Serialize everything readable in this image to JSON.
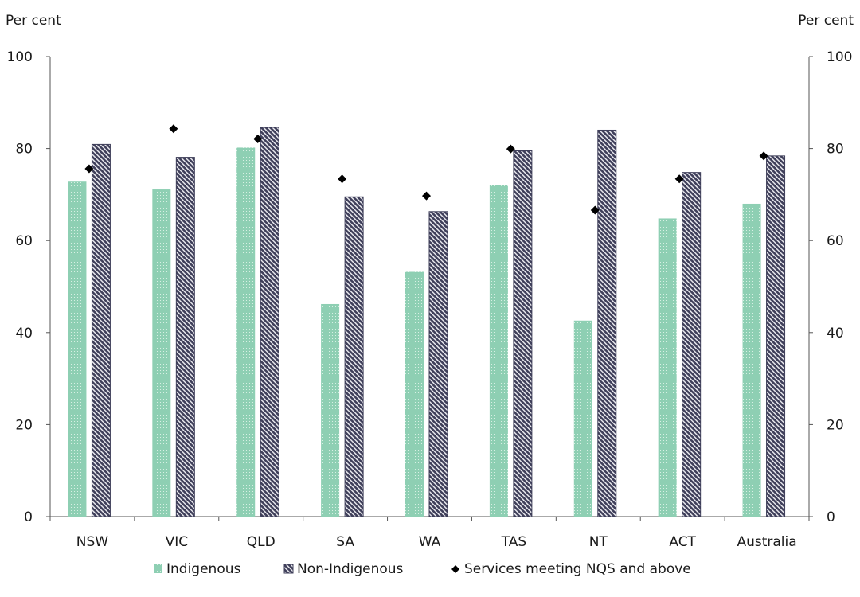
{
  "chart_data": {
    "type": "bar",
    "left_unit_label": "Per cent",
    "right_unit_label": "Per cent",
    "categories": [
      "NSW",
      "VIC",
      "QLD",
      "SA",
      "WA",
      "TAS",
      "NT",
      "ACT",
      "Australia"
    ],
    "ylim": [
      0,
      100
    ],
    "yticks": [
      0,
      20,
      40,
      60,
      80,
      100
    ],
    "ytick_labels": [
      "0",
      "20",
      "40",
      "60",
      "80",
      "100"
    ],
    "grid": false,
    "legend_position": "bottom",
    "series": [
      {
        "name": "Indigenous",
        "kind": "bar",
        "color": "#8ecfb3",
        "pattern": "dotted",
        "values": [
          72.8,
          71.1,
          80.2,
          46.2,
          53.2,
          72.0,
          42.6,
          64.8,
          68.0
        ]
      },
      {
        "name": "Non-Indigenous",
        "kind": "bar",
        "color": "#3f3f5a",
        "pattern": "hatched",
        "values": [
          80.9,
          78.1,
          84.6,
          69.5,
          66.3,
          79.5,
          84.0,
          74.8,
          78.4
        ]
      },
      {
        "name": "Services meeting NQS and above",
        "kind": "marker",
        "color": "#000000",
        "marker": "diamond",
        "values": [
          75.6,
          84.3,
          82.1,
          73.4,
          69.7,
          79.9,
          66.6,
          73.4,
          78.4
        ]
      }
    ]
  }
}
